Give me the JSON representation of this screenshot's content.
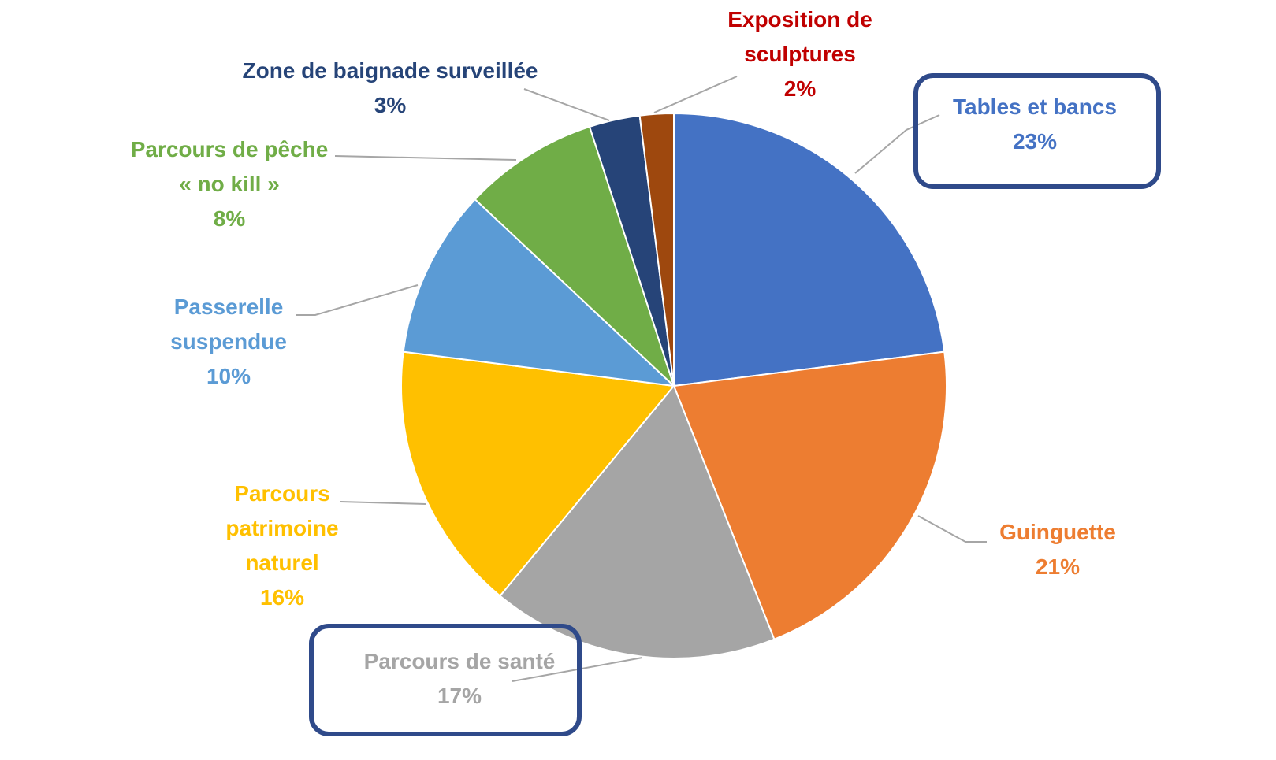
{
  "chart_data": {
    "type": "pie",
    "categories": [
      "Tables et bancs",
      "Guinguette",
      "Parcours de santé",
      "Parcours patrimoine naturel",
      "Passerelle suspendue",
      "Parcours de pêche « no kill »",
      "Zone de baignade surveillée",
      "Exposition de sculptures"
    ],
    "values": [
      23,
      21,
      17,
      16,
      10,
      8,
      3,
      2
    ],
    "value_labels": [
      "23%",
      "21%",
      "17%",
      "16%",
      "10%",
      "8%",
      "3%",
      "2%"
    ],
    "colors": [
      "#4472c4",
      "#ed7d31",
      "#a5a5a5",
      "#ffc000",
      "#5b9bd5",
      "#70ad47",
      "#264478",
      "#9e480e"
    ],
    "label_colors": [
      "#4472c4",
      "#ed7d31",
      "#a5a5a5",
      "#ffc000",
      "#5b9bd5",
      "#70ad47",
      "#264478",
      "#c00000"
    ]
  }
}
